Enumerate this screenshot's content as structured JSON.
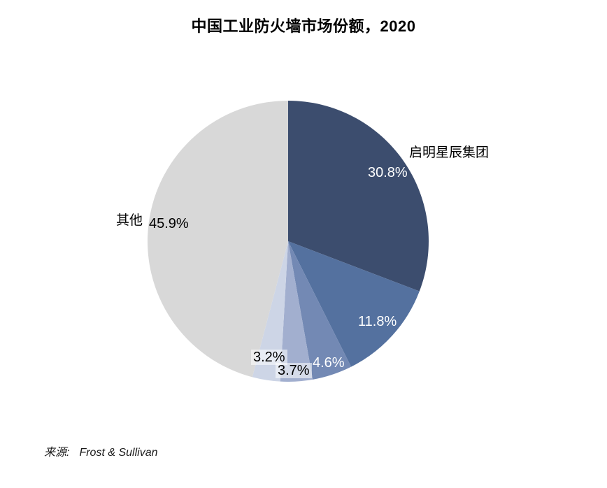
{
  "title": "中国工业防火墙市场份额，2020",
  "source": {
    "prefix": "来源:",
    "text": "Frost & Sullivan"
  },
  "chart_data": {
    "type": "pie",
    "title": "中国工业防火墙市场份额，2020",
    "start_angle_deg": 0,
    "direction": "clockwise",
    "legend_position": "none",
    "slices": [
      {
        "label": "启明星辰集团",
        "value": 30.8,
        "pct_label": "30.8%",
        "color": "#3C4D6E"
      },
      {
        "label": "",
        "value": 11.8,
        "pct_label": "11.8%",
        "color": "#54719F"
      },
      {
        "label": "",
        "value": 4.6,
        "pct_label": "4.6%",
        "color": "#7389B4"
      },
      {
        "label": "",
        "value": 3.7,
        "pct_label": "3.7%",
        "color": "#A2AFCF"
      },
      {
        "label": "",
        "value": 3.2,
        "pct_label": "3.2%",
        "color": "#CDD5E6"
      },
      {
        "label": "其他",
        "value": 45.9,
        "pct_label": "45.9%",
        "color": "#D8D8D8"
      }
    ]
  }
}
